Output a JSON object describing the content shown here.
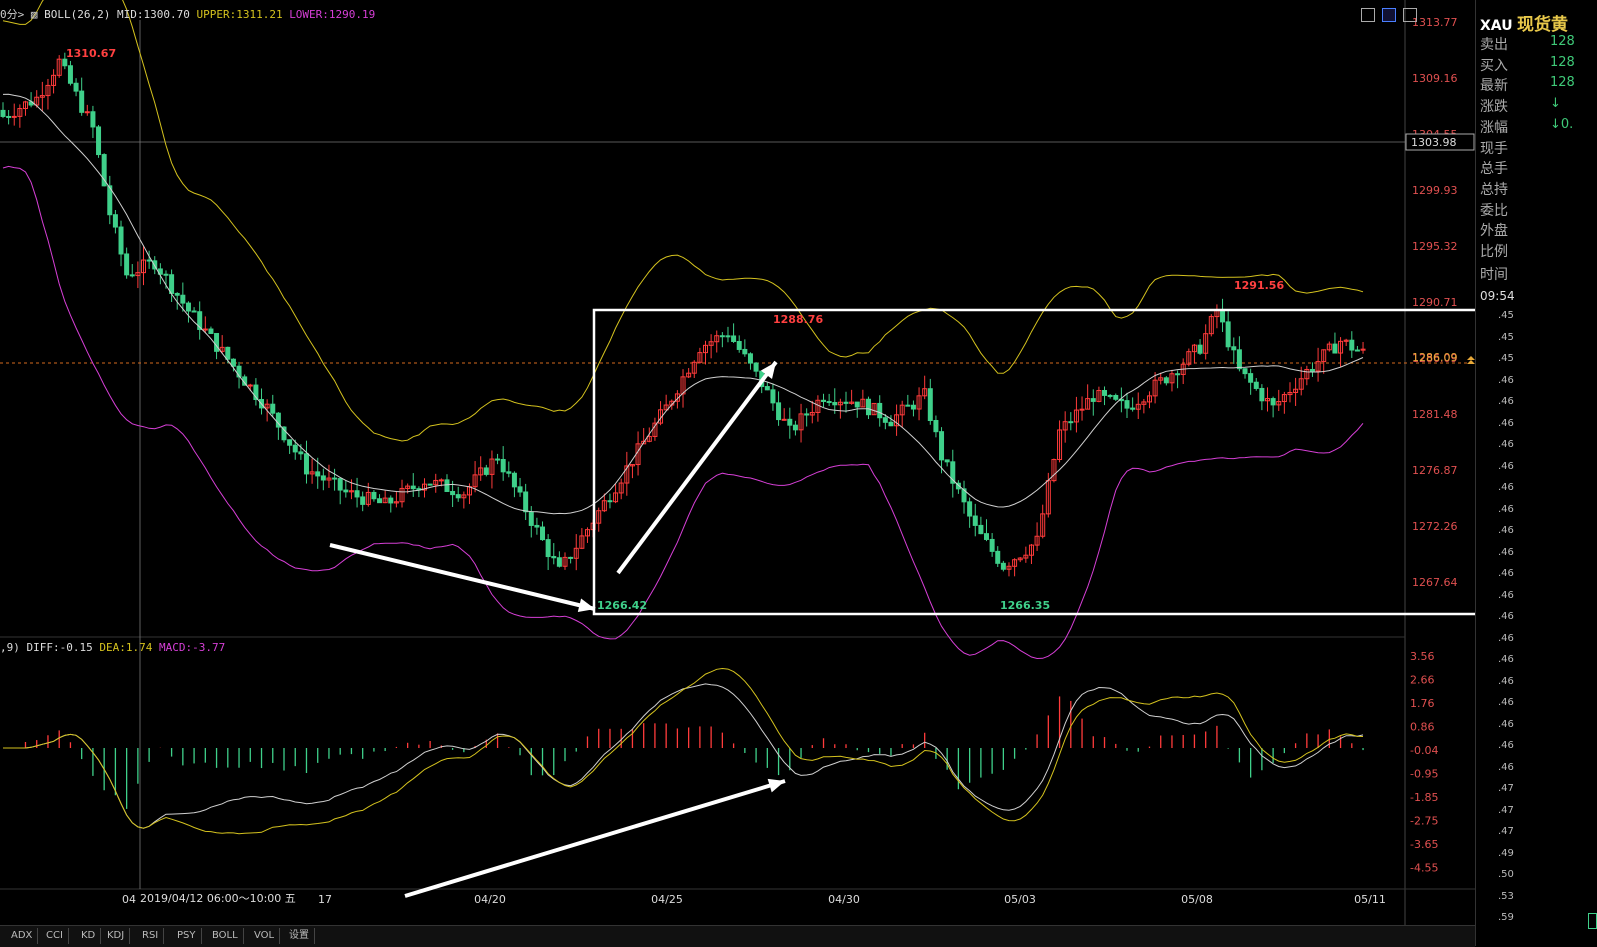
{
  "header": {
    "period_prefix": "0分>",
    "indicator": "BOLL(26,2)",
    "mid": "MID:1300.70",
    "upper": "UPPER:1311.21",
    "lower": "LOWER:1290.19"
  },
  "macd_header": {
    "prefix": ",9)",
    "diff": "DIFF:-0.15",
    "dea": "DEA:1.74",
    "macd": "MACD:-3.77"
  },
  "price_axis": [
    "1313.77",
    "1309.16",
    "1304.55",
    "1299.93",
    "1295.32",
    "1290.71",
    "1286.09",
    "1281.48",
    "1276.87",
    "1272.26",
    "1267.64"
  ],
  "crosshair_price": "1303.98",
  "last_price_label": "1286.09",
  "macd_axis": [
    "3.56",
    "2.66",
    "1.76",
    "0.86",
    "-0.04",
    "-0.95",
    "-1.85",
    "-2.75",
    "-3.65",
    "-4.55"
  ],
  "date_labels": [
    "04/20",
    "04/25",
    "04/30",
    "05/03",
    "05/08",
    "05/11"
  ],
  "date_prefix": "04",
  "crosshair_date": "2019/04/12  06:00～10:00  五",
  "crosshair_date_suffix": "17",
  "annotations": {
    "high_left": "1310.67",
    "high_mid": "1288.76",
    "high_right": "1291.56",
    "low_left": "1266.42",
    "low_right": "1266.35"
  },
  "sidebar": {
    "symbol": "XAU",
    "name": "现货黄",
    "rows": [
      {
        "label": "卖出",
        "value": "128"
      },
      {
        "label": "买入",
        "value": "128"
      },
      {
        "label": "最新",
        "value": "128"
      },
      {
        "label": "涨跌",
        "value": "↓"
      },
      {
        "label": "涨幅",
        "value": "↓0."
      },
      {
        "label": "现手",
        "value": ""
      },
      {
        "label": "总手",
        "value": ""
      },
      {
        "label": "总持",
        "value": ""
      },
      {
        "label": "委比",
        "value": ""
      },
      {
        "label": "外盘",
        "value": ""
      },
      {
        "label": "比例",
        "value": ""
      }
    ],
    "time_label": "时间",
    "time_value": "09:54",
    "ticks": [
      ".45",
      ".45",
      ".45",
      ".46",
      ".46",
      ".46",
      ".46",
      ".46",
      ".46",
      ".46",
      ".46",
      ".46",
      ".46",
      ".46",
      ".46",
      ".46",
      ".46",
      ".46",
      ".46",
      ".46",
      ".46",
      ".46",
      ".47",
      ".47",
      ".47",
      ".49",
      ".50",
      ".53",
      ".59"
    ]
  },
  "tabs": [
    "ADX",
    "CCI",
    "KD",
    "KDJ",
    "RSI",
    "PSY",
    "BOLL",
    "VOL",
    "设置"
  ],
  "colors": {
    "up": "#ff3b3b",
    "down": "#3fd08a",
    "upper": "#d4c21e",
    "mid": "#d0d0d0",
    "lower": "#d63fd6",
    "box": "#ffffff"
  }
}
